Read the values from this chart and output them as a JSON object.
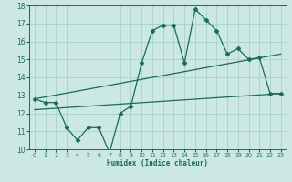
{
  "xlabel": "Humidex (Indice chaleur)",
  "background_color": "#cce8e5",
  "grid_color": "#aad0cc",
  "line_color": "#1a6b5a",
  "xlim": [
    -0.5,
    23.5
  ],
  "ylim": [
    10,
    18
  ],
  "xticks": [
    0,
    1,
    2,
    3,
    4,
    5,
    6,
    7,
    8,
    9,
    10,
    11,
    12,
    13,
    14,
    15,
    16,
    17,
    18,
    19,
    20,
    21,
    22,
    23
  ],
  "yticks": [
    10,
    11,
    12,
    13,
    14,
    15,
    16,
    17,
    18
  ],
  "curve1_x": [
    0,
    1,
    2,
    3,
    4,
    5,
    6,
    7,
    8,
    9,
    10,
    11,
    12,
    13,
    14,
    15,
    16,
    17,
    18,
    19,
    20,
    21,
    22,
    23
  ],
  "curve1_y": [
    12.8,
    12.6,
    12.6,
    11.2,
    10.5,
    11.2,
    11.2,
    9.8,
    12.0,
    12.4,
    14.8,
    16.6,
    16.9,
    16.9,
    14.8,
    17.8,
    17.2,
    16.6,
    15.3,
    15.6,
    15.0,
    15.1,
    13.1,
    13.1
  ],
  "curve2_x": [
    0,
    23
  ],
  "curve2_y": [
    12.8,
    15.3
  ],
  "curve3_x": [
    0,
    23
  ],
  "curve3_y": [
    12.2,
    13.1
  ],
  "marker": "D",
  "marker_size": 2.5
}
